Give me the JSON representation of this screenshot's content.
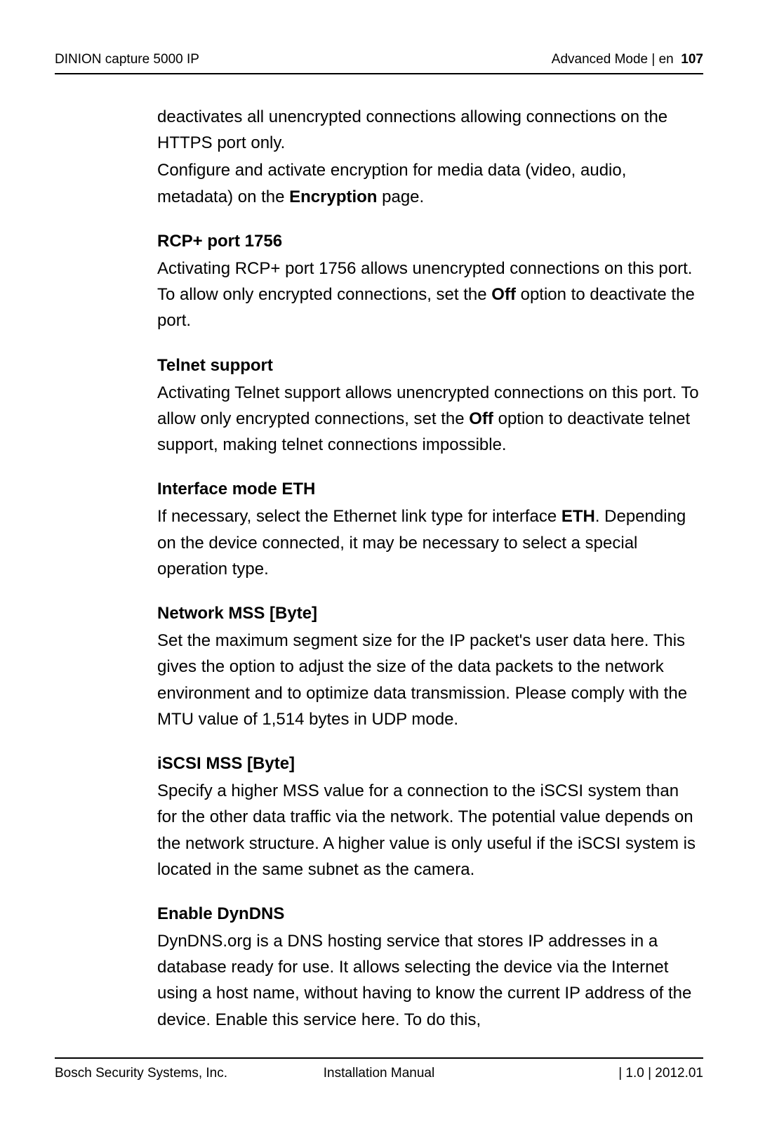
{
  "header": {
    "left": "DINION capture 5000 IP",
    "right_label": "Advanced Mode | en",
    "page_number": "107"
  },
  "intro": {
    "p1a": "deactivates all unencrypted connections allowing connections on the HTTPS port only.",
    "p1b_pre": "Configure and activate encryption for media data (video, audio, metadata) on the ",
    "p1b_bold": "Encryption",
    "p1b_post": " page."
  },
  "sections": {
    "rcp": {
      "title": "RCP+ port 1756",
      "pre": "Activating RCP+ port 1756 allows unencrypted connections on this port. To allow only encrypted connections, set the ",
      "bold": "Off",
      "post": " option to deactivate the port."
    },
    "telnet": {
      "title": "Telnet support",
      "pre": "Activating Telnet support allows unencrypted connections on this port. To allow only encrypted connections, set the ",
      "bold": "Off",
      "post": " option to deactivate telnet support, making telnet connections impossible."
    },
    "eth": {
      "title": "Interface mode ETH",
      "pre": "If necessary, select the Ethernet link type for interface ",
      "bold": "ETH",
      "post": ". Depending on the device connected, it may be necessary to select a special operation type."
    },
    "mss": {
      "title": "Network MSS [Byte]",
      "text": "Set the maximum segment size for the IP packet's user data here. This gives the option to adjust the size of the data packets to the network environment and to optimize data transmission. Please comply with the MTU value of 1,514 bytes in UDP mode."
    },
    "iscsi": {
      "title": "iSCSI MSS [Byte]",
      "text": "Specify a higher MSS value for a connection to the iSCSI system than for the other data traffic via the network. The potential value depends on the network structure. A higher value is only useful if the iSCSI system is located in the same subnet as the camera."
    },
    "dyndns": {
      "title": "Enable DynDNS",
      "text": "DynDNS.org is a DNS hosting service that stores IP addresses in a database ready for use. It allows selecting the device via the Internet using a host name, without having to know the current IP address of the device. Enable this service here. To do this,"
    }
  },
  "footer": {
    "left": "Bosch Security Systems, Inc.",
    "center": "Installation Manual",
    "right": "| 1.0 | 2012.01"
  }
}
